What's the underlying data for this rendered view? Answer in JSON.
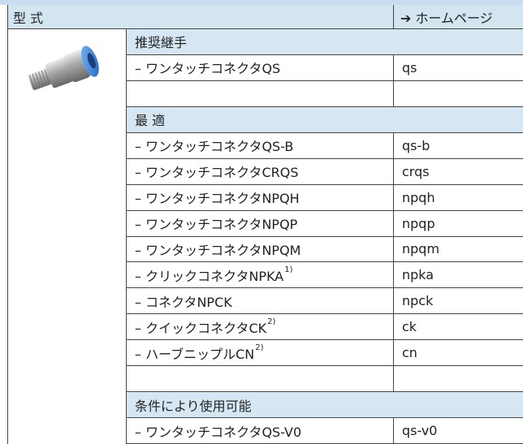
{
  "header": {
    "title": "型 式",
    "link": "➔ ホームページ"
  },
  "sections": [
    {
      "title": "推奨継手",
      "rows": [
        {
          "name": "– ワンタッチコネクタQS",
          "code": "qs"
        }
      ],
      "blank_after": true
    },
    {
      "title": "最 適",
      "rows": [
        {
          "name": "– ワンタッチコネクタQS-B",
          "code": "qs-b"
        },
        {
          "name": "– ワンタッチコネクタCRQS",
          "code": "crqs"
        },
        {
          "name": "– ワンタッチコネクタNPQH",
          "code": "npqh"
        },
        {
          "name": "– ワンタッチコネクタNPQP",
          "code": "npqp"
        },
        {
          "name": "– ワンタッチコネクタNPQM",
          "code": "npqm"
        },
        {
          "name": "– クリックコネクタNPKA",
          "sup": "1)",
          "code": "npka"
        },
        {
          "name": "– コネクタNPCK",
          "code": "npck"
        },
        {
          "name": "– クイックコネクタCK",
          "sup": "2)",
          "code": "ck"
        },
        {
          "name": "– ハーブニップルCN",
          "sup": "2)",
          "code": "cn"
        }
      ],
      "blank_after": true
    },
    {
      "title": "条件により使用可能",
      "rows": [
        {
          "name": "– ワンタッチコネクタQS-V0",
          "code": "qs-v0"
        }
      ],
      "blank_after": false
    }
  ]
}
